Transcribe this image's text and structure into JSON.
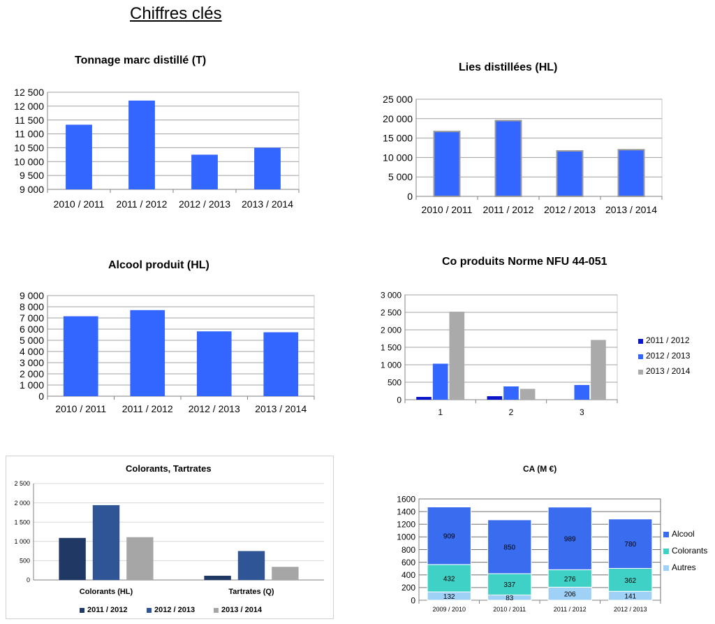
{
  "page": {
    "title": "Chiffres clés"
  },
  "colors": {
    "blue": "#3366ff",
    "dark_blue": "#0a14c8",
    "gray": "#aaaaaa",
    "navy": "#1f3864",
    "steel_blue": "#2f5597",
    "light_gray": "#a6a6a6",
    "alcool": "#3a6cf0",
    "colorants": "#3fd0c6",
    "autres": "#9fd0f5"
  },
  "chart_data": [
    {
      "id": "tonnage",
      "type": "bar",
      "title": "Tonnage marc distillé (T)",
      "categories": [
        "2010 / 2011",
        "2011 / 2012",
        "2012 / 2013",
        "2013 / 2014"
      ],
      "values": [
        11330,
        12200,
        10250,
        10500
      ],
      "ylim": [
        9000,
        12500
      ],
      "yticks": [
        9000,
        9500,
        10000,
        10500,
        11000,
        11500,
        12000,
        12500
      ],
      "ytick_labels": [
        "9 000",
        "9 500",
        "10 000",
        "10 500",
        "11 000",
        "11 500",
        "12 000",
        "12 500"
      ],
      "grid": true,
      "legend": "none"
    },
    {
      "id": "lies",
      "type": "bar",
      "title": "Lies distillées (HL)",
      "categories": [
        "2010 / 2011",
        "2011 / 2012",
        "2012 / 2013",
        "2013 / 2014"
      ],
      "values": [
        16700,
        19500,
        11700,
        12000
      ],
      "ylim": [
        0,
        25000
      ],
      "yticks": [
        0,
        5000,
        10000,
        15000,
        20000,
        25000
      ],
      "ytick_labels": [
        "0",
        "5 000",
        "10 000",
        "15 000",
        "20 000",
        "25 000"
      ],
      "grid": true,
      "legend": "none"
    },
    {
      "id": "alcool",
      "type": "bar",
      "title": "Alcool produit (HL)",
      "categories": [
        "2010 / 2011",
        "2011 / 2012",
        "2012 / 2013",
        "2013 / 2014"
      ],
      "values": [
        7150,
        7700,
        5800,
        5720
      ],
      "ylim": [
        0,
        9000
      ],
      "yticks": [
        0,
        1000,
        2000,
        3000,
        4000,
        5000,
        6000,
        7000,
        8000,
        9000
      ],
      "ytick_labels": [
        "0",
        "1 000",
        "2 000",
        "3 000",
        "4 000",
        "5 000",
        "6 000",
        "7 000",
        "8 000",
        "9 000"
      ],
      "grid": true,
      "legend": "none"
    },
    {
      "id": "coproduits",
      "type": "bar",
      "title": "Co produits Norme NFU 44-051",
      "categories": [
        "1",
        "2",
        "3"
      ],
      "series": [
        {
          "name": "2011 / 2012",
          "values": [
            80,
            100,
            0
          ]
        },
        {
          "name": "2012 / 2013",
          "values": [
            1030,
            380,
            420
          ]
        },
        {
          "name": "2013 / 2014",
          "values": [
            2520,
            310,
            1710
          ]
        }
      ],
      "ylim": [
        0,
        3000
      ],
      "yticks": [
        0,
        500,
        1000,
        1500,
        2000,
        2500,
        3000
      ],
      "ytick_labels": [
        "0",
        "500",
        "1 000",
        "1 500",
        "2 000",
        "2 500",
        "3 000"
      ],
      "grid": true,
      "legend": "right"
    },
    {
      "id": "colorants",
      "type": "bar",
      "title": "Colorants, Tartrates",
      "categories": [
        "Colorants (HL)",
        "Tartrates (Q)"
      ],
      "series": [
        {
          "name": "2011 / 2012",
          "values": [
            1090,
            110
          ]
        },
        {
          "name": "2012 / 2013",
          "values": [
            1940,
            750
          ]
        },
        {
          "name": "2013 / 2014",
          "values": [
            1110,
            340
          ]
        }
      ],
      "ylim": [
        0,
        2500
      ],
      "yticks": [
        0,
        500,
        1000,
        1500,
        2000,
        2500
      ],
      "ytick_labels": [
        "0",
        "500",
        "1 000",
        "1 500",
        "2 000",
        "2 500"
      ],
      "grid": true,
      "legend": "bottom"
    },
    {
      "id": "ca",
      "type": "bar",
      "stacked": true,
      "title": "CA (M €)",
      "categories": [
        "2009 / 2010",
        "2010 / 2011",
        "2011 / 2012",
        "2012 / 2013"
      ],
      "series": [
        {
          "name": "Autres",
          "values": [
            132,
            83,
            206,
            141
          ]
        },
        {
          "name": "Colorants",
          "values": [
            432,
            337,
            276,
            362
          ]
        },
        {
          "name": "Alcool",
          "values": [
            909,
            850,
            989,
            780
          ]
        }
      ],
      "legend_order": [
        "Alcool",
        "Colorants",
        "Autres"
      ],
      "ylim": [
        0,
        1600
      ],
      "yticks": [
        0,
        200,
        400,
        600,
        800,
        1000,
        1200,
        1400,
        1600
      ],
      "ytick_labels": [
        "0",
        "200",
        "400",
        "600",
        "800",
        "1000",
        "1200",
        "1400",
        "1600"
      ],
      "grid": true,
      "legend": "right"
    }
  ]
}
